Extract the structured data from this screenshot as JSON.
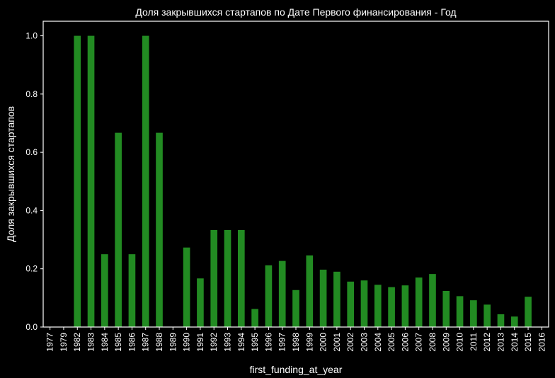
{
  "chart_data": {
    "type": "bar",
    "title": "Доля закрывшихся стартапов по Дате Первого финансирования - Год",
    "xlabel": "first_funding_at_year",
    "ylabel": "Доля закрывшихся стартапов",
    "ylim": [
      0,
      1.05
    ],
    "yticks": [
      "0.0",
      "0.2",
      "0.4",
      "0.6",
      "0.8",
      "1.0"
    ],
    "grid": false,
    "bar_color": "#228B22",
    "background": "#000000",
    "categories": [
      "1977",
      "1979",
      "1982",
      "1983",
      "1984",
      "1985",
      "1986",
      "1987",
      "1988",
      "1989",
      "1990",
      "1991",
      "1992",
      "1993",
      "1994",
      "1995",
      "1996",
      "1997",
      "1998",
      "1999",
      "2000",
      "2001",
      "2002",
      "2003",
      "2004",
      "2005",
      "2006",
      "2007",
      "2008",
      "2009",
      "2010",
      "2011",
      "2012",
      "2013",
      "2014",
      "2015",
      "2016"
    ],
    "values": [
      0,
      0,
      1.0,
      1.0,
      0.25,
      0.667,
      0.25,
      1.0,
      0.667,
      0,
      0.273,
      0.167,
      0.333,
      0.333,
      0.333,
      0.062,
      0.212,
      0.227,
      0.127,
      0.246,
      0.197,
      0.19,
      0.156,
      0.16,
      0.145,
      0.137,
      0.143,
      0.17,
      0.182,
      0.124,
      0.106,
      0.092,
      0.077,
      0.044,
      0.036,
      0.104,
      0
    ]
  }
}
